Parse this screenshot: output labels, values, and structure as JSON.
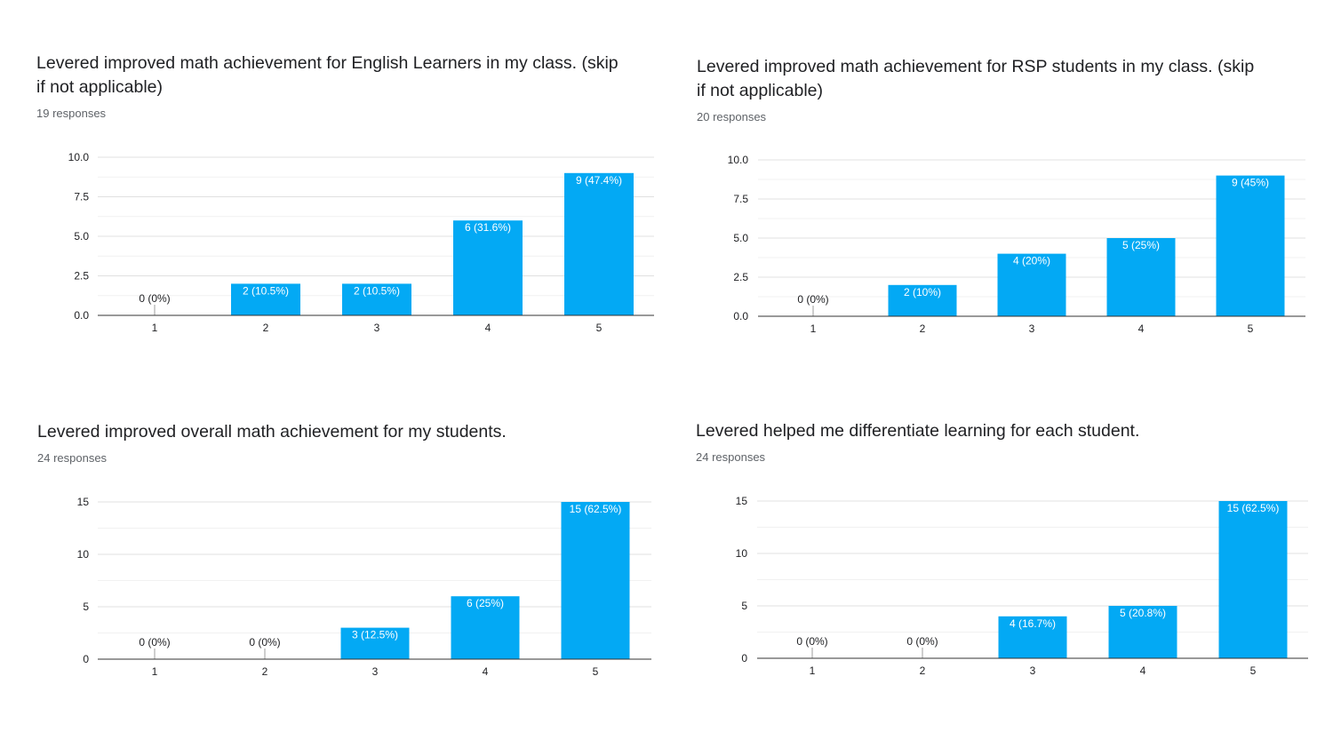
{
  "charts": [
    {
      "title": "Levered improved math achievement for English Learners in my class. (skip if not applicable)",
      "responses": "19 responses",
      "bar_color": "#03a9f4",
      "chart_data": {
        "type": "bar",
        "title": "Levered improved math achievement for English Learners in my class. (skip if not applicable)",
        "categories": [
          "1",
          "2",
          "3",
          "4",
          "5"
        ],
        "values": [
          0,
          2,
          2,
          6,
          9
        ],
        "labels": [
          "0 (0%)",
          "2 (10.5%)",
          "2 (10.5%)",
          "6 (31.6%)",
          "9 (47.4%)"
        ],
        "yticks": [
          "0.0",
          "2.5",
          "5.0",
          "7.5",
          "10.0"
        ],
        "ylim": [
          0,
          10
        ],
        "grid": true,
        "xlabel": "",
        "ylabel": ""
      }
    },
    {
      "title": "Levered improved math achievement for RSP students in my class. (skip if not applicable)",
      "responses": "20 responses",
      "bar_color": "#03a9f4",
      "chart_data": {
        "type": "bar",
        "title": "Levered improved math achievement for RSP students in my class. (skip if not applicable)",
        "categories": [
          "1",
          "2",
          "3",
          "4",
          "5"
        ],
        "values": [
          0,
          2,
          4,
          5,
          9
        ],
        "labels": [
          "0 (0%)",
          "2 (10%)",
          "4 (20%)",
          "5 (25%)",
          "9 (45%)"
        ],
        "yticks": [
          "0.0",
          "2.5",
          "5.0",
          "7.5",
          "10.0"
        ],
        "ylim": [
          0,
          10
        ],
        "grid": true,
        "xlabel": "",
        "ylabel": ""
      }
    },
    {
      "title": "Levered improved overall math achievement for my students.",
      "responses": "24 responses",
      "bar_color": "#03a9f4",
      "chart_data": {
        "type": "bar",
        "title": "Levered improved overall math achievement for my students.",
        "categories": [
          "1",
          "2",
          "3",
          "4",
          "5"
        ],
        "values": [
          0,
          0,
          3,
          6,
          15
        ],
        "labels": [
          "0 (0%)",
          "0 (0%)",
          "3 (12.5%)",
          "6 (25%)",
          "15 (62.5%)"
        ],
        "yticks": [
          "0",
          "5",
          "10",
          "15"
        ],
        "ylim": [
          0,
          15
        ],
        "grid": true,
        "xlabel": "",
        "ylabel": ""
      }
    },
    {
      "title": "Levered helped me differentiate learning for each student.",
      "responses": "24 responses",
      "bar_color": "#03a9f4",
      "chart_data": {
        "type": "bar",
        "title": "Levered helped me differentiate learning for each student.",
        "categories": [
          "1",
          "2",
          "3",
          "4",
          "5"
        ],
        "values": [
          0,
          0,
          4,
          5,
          15
        ],
        "labels": [
          "0 (0%)",
          "0 (0%)",
          "4 (16.7%)",
          "5 (20.8%)",
          "15 (62.5%)"
        ],
        "yticks": [
          "0",
          "5",
          "10",
          "15"
        ],
        "ylim": [
          0,
          15
        ],
        "grid": true,
        "xlabel": "",
        "ylabel": ""
      }
    }
  ]
}
